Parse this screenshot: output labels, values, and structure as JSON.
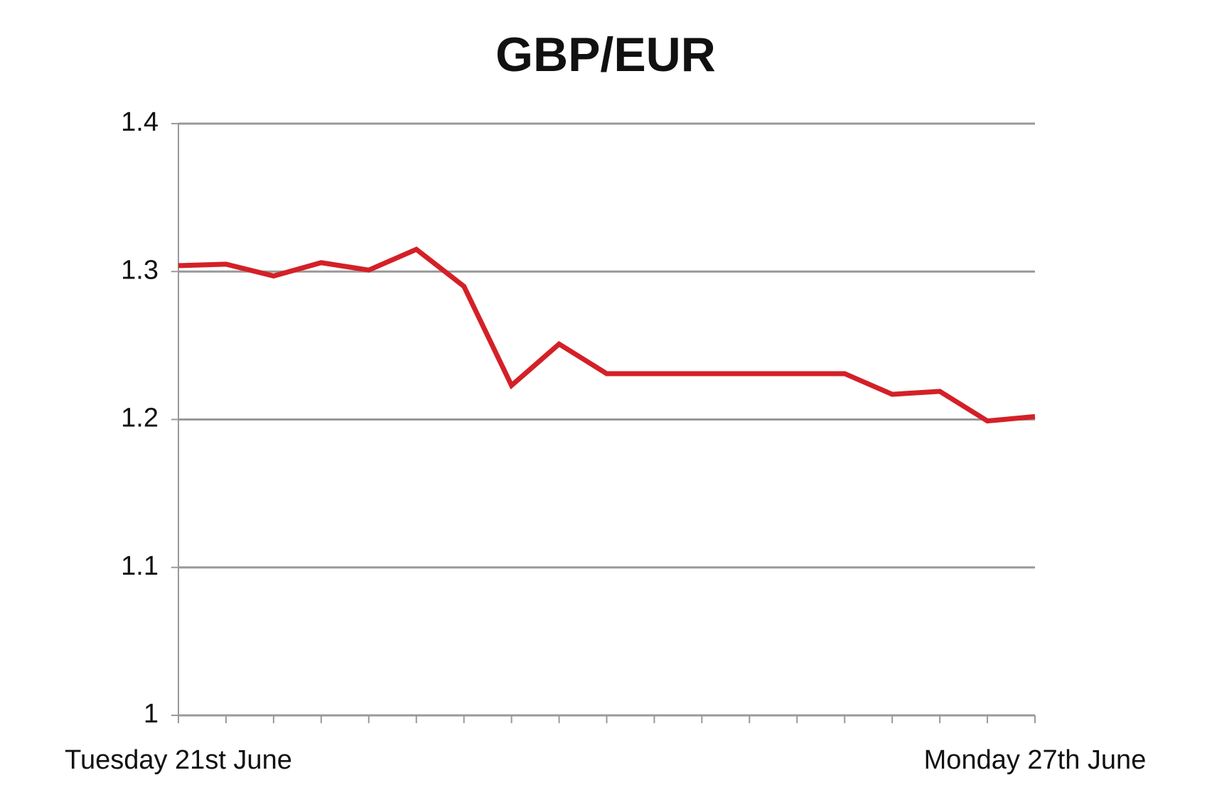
{
  "chart_data": {
    "type": "line",
    "title": "GBP/EUR",
    "categories": [
      "Tuesday 21st June",
      null,
      null,
      null,
      null,
      null,
      null,
      null,
      null,
      null,
      null,
      null,
      null,
      null,
      null,
      null,
      null,
      null,
      "Monday 27th June"
    ],
    "values": [
      1.304,
      1.305,
      1.297,
      1.306,
      1.301,
      1.315,
      1.29,
      1.223,
      1.251,
      1.231,
      1.231,
      1.231,
      1.231,
      1.231,
      1.231,
      1.217,
      1.219,
      1.199,
      1.202
    ],
    "color": "#d42027",
    "ylim": [
      1,
      1.4
    ],
    "yticks": [
      1,
      1.1,
      1.2,
      1.3,
      1.4
    ],
    "grid": true
  }
}
